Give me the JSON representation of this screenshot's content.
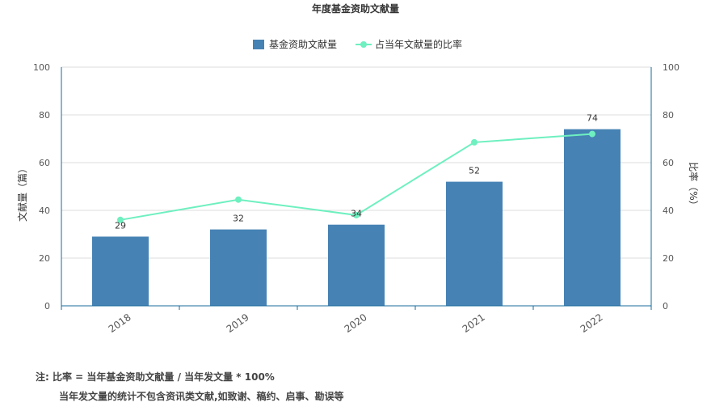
{
  "chart_data": {
    "type": "bar",
    "title": "年度基金资助文献量",
    "categories": [
      "2018",
      "2019",
      "2020",
      "2021",
      "2022"
    ],
    "series": [
      {
        "name": "基金资助文献量",
        "type": "bar",
        "axis": "left",
        "values": [
          29,
          32,
          34,
          52,
          74
        ],
        "color": "#4682b4"
      },
      {
        "name": "占当年文献量的比率",
        "type": "line",
        "axis": "right",
        "values": [
          36,
          44.5,
          38,
          68.5,
          72
        ],
        "color": "#6ef0c0"
      }
    ],
    "ylabel": "文献量（篇）",
    "y2label": "比率（%）",
    "ylim": [
      0,
      100
    ],
    "y2lim": [
      0,
      100
    ],
    "yticks": [
      "0",
      "20",
      "40",
      "60",
      "80",
      "100"
    ],
    "y2ticks": [
      "0",
      "20",
      "40",
      "60",
      "80",
      "100"
    ],
    "grid": true,
    "legend": "top-center",
    "axis_color": "#1a6b9b"
  },
  "notes": {
    "line1": "注:   比率 = 当年基金资助文献量 / 当年发文量 * 100%",
    "line2": "当年发文量的统计不包含资讯类文献,如致谢、稿约、启事、勘误等"
  }
}
